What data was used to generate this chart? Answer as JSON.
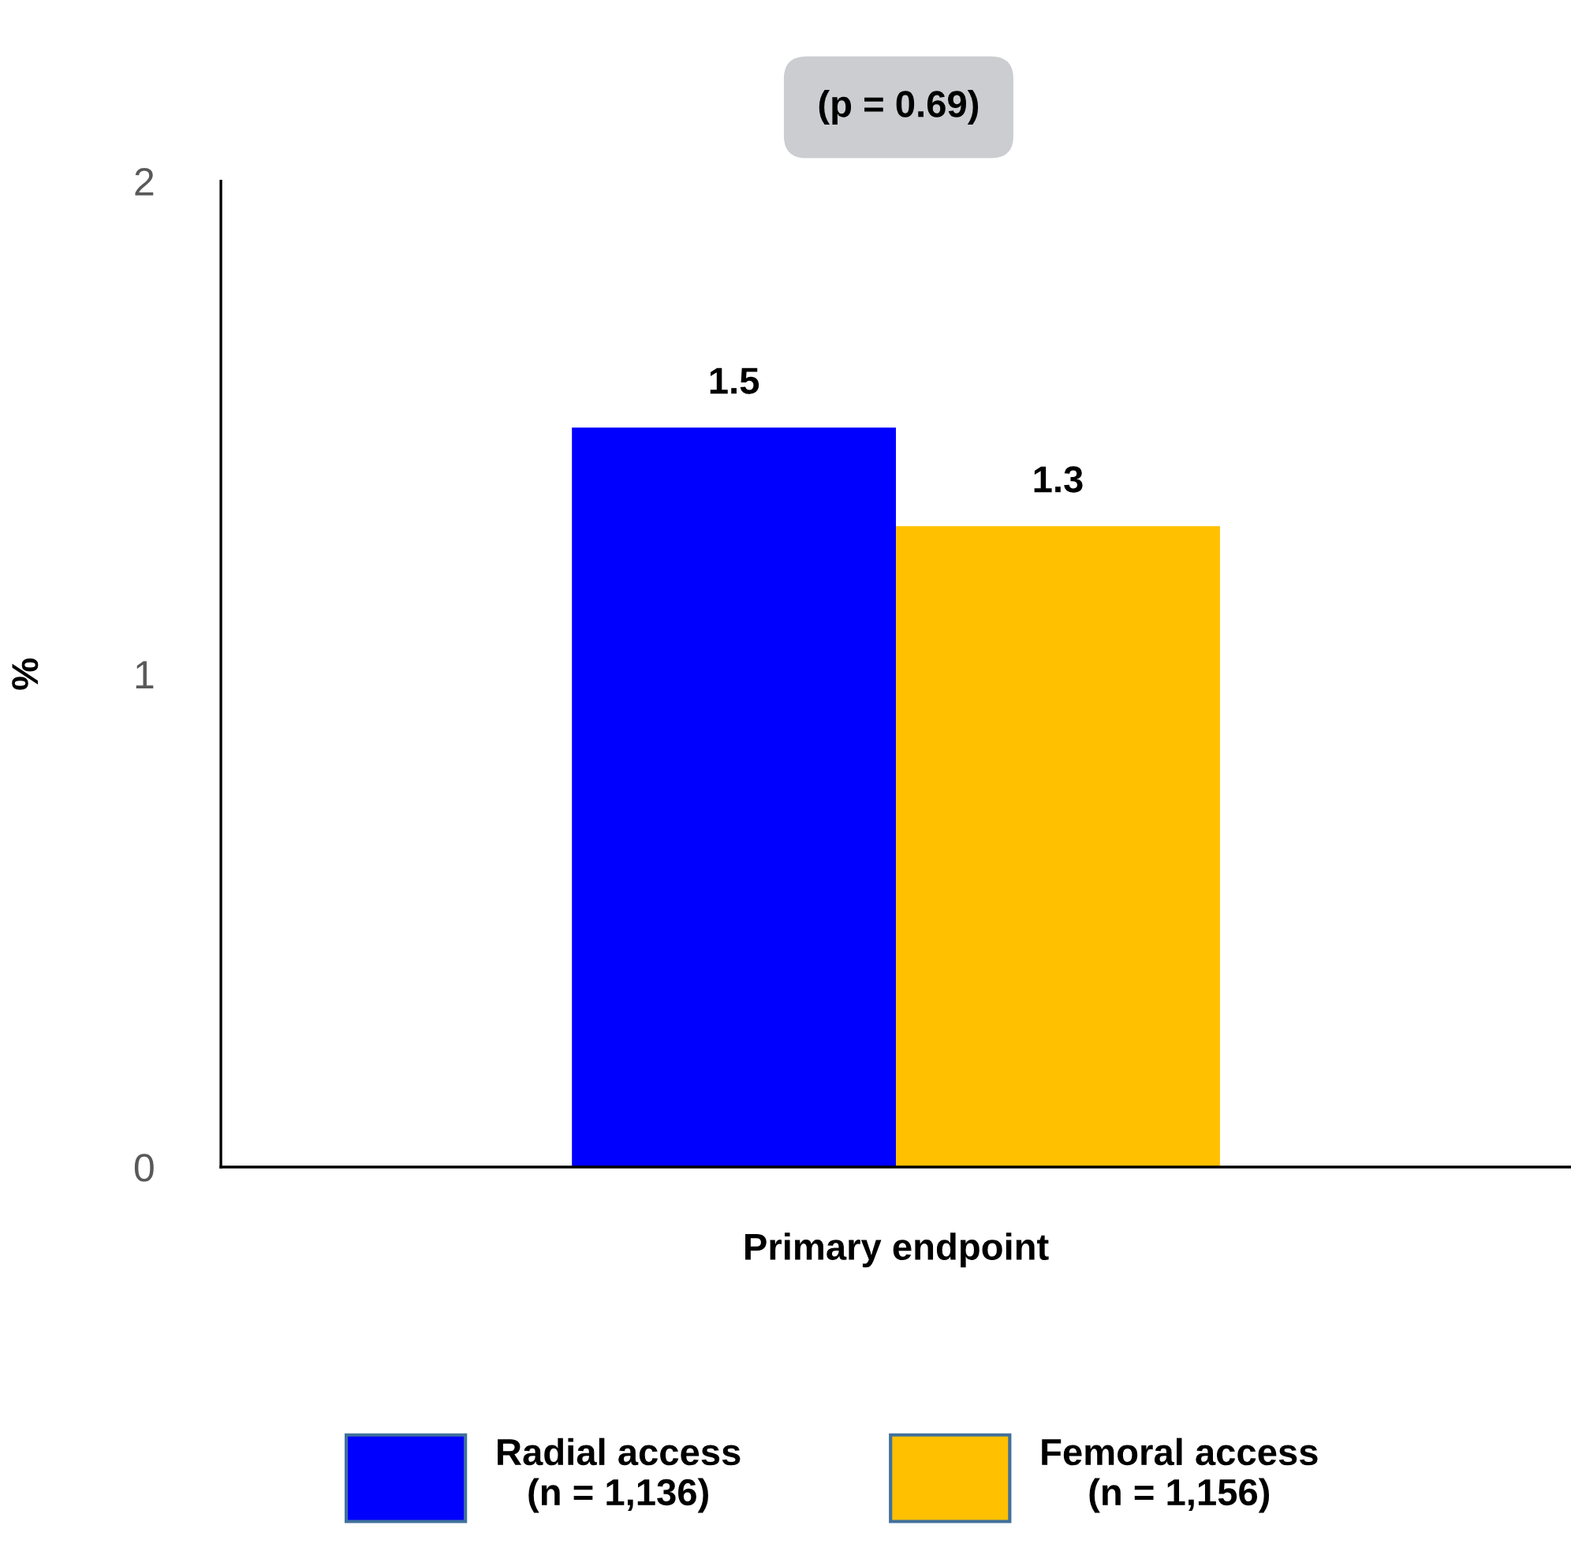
{
  "chart_data": {
    "type": "bar",
    "categories": [
      "Primary endpoint"
    ],
    "ylabel": "%",
    "series": [
      {
        "name": "Radial access\n(n = 1,136)",
        "color": "#0000ff",
        "values": [
          1.5
        ]
      },
      {
        "name": "Femoral access\n(n = 1,156)",
        "color": "#ffc000",
        "values": [
          1.3
        ]
      }
    ],
    "ylim": [
      0,
      2
    ],
    "yticks": [
      0,
      1,
      2
    ],
    "data_labels": true,
    "grid": false,
    "legend": "bottom",
    "annotations": [
      "(p = 0.69)"
    ]
  }
}
